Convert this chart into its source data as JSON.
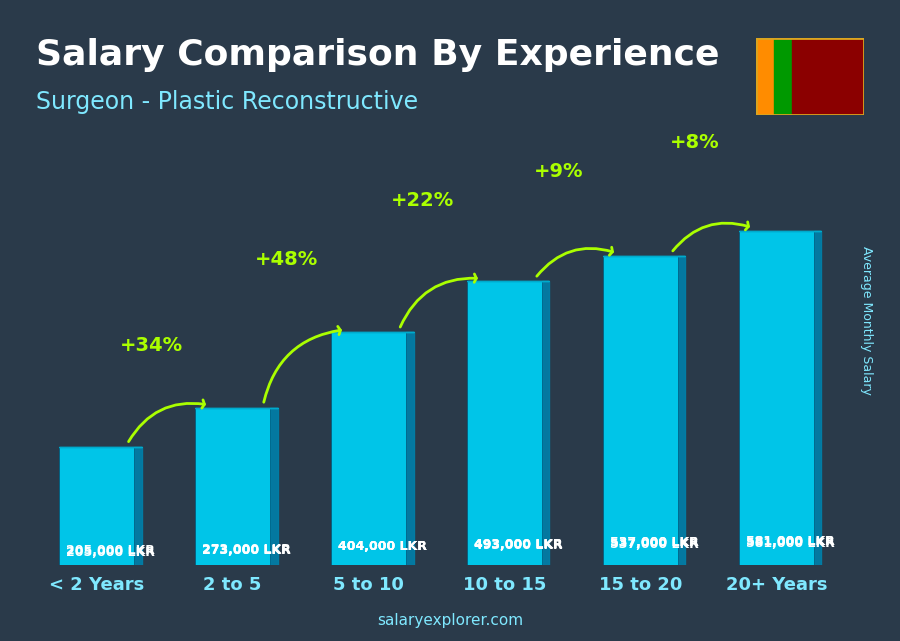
{
  "title": "Salary Comparison By Experience",
  "subtitle": "Surgeon - Plastic Reconstructive",
  "categories": [
    "< 2 Years",
    "2 to 5",
    "5 to 10",
    "10 to 15",
    "15 to 20",
    "20+ Years"
  ],
  "values": [
    205000,
    273000,
    404000,
    493000,
    537000,
    581000
  ],
  "labels": [
    "205,000 LKR",
    "273,000 LKR",
    "404,000 LKR",
    "493,000 LKR",
    "537,000 LKR",
    "581,000 LKR"
  ],
  "pct_changes": [
    "+34%",
    "+48%",
    "+22%",
    "+9%",
    "+8%"
  ],
  "bar_color_face": "#00BFFF",
  "bar_color_dark": "#0080AA",
  "background_color": "#1a2a3a",
  "text_color_white": "#FFFFFF",
  "text_color_cyan": "#7FFFEE",
  "text_color_green": "#AAFF00",
  "ylabel": "Average Monthly Salary",
  "watermark": "salaryexplorer.com",
  "ylim": [
    0,
    700000
  ],
  "title_fontsize": 28,
  "subtitle_fontsize": 18,
  "bar_width": 0.55
}
